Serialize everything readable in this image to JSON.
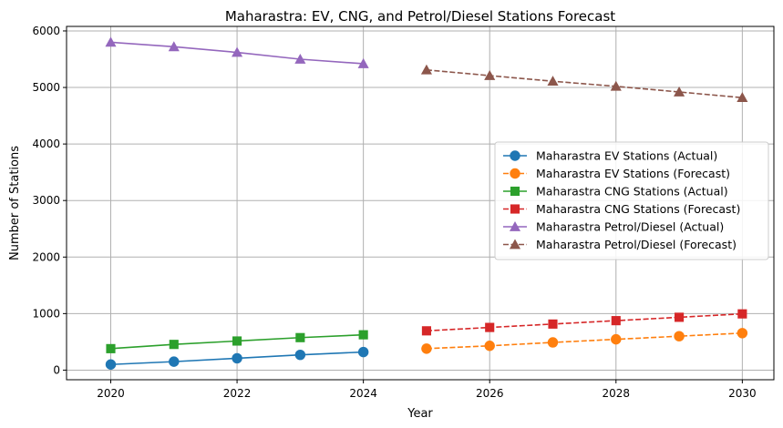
{
  "chart_data": {
    "type": "line",
    "title": "Maharastra: EV, CNG, and Petrol/Diesel Stations Forecast",
    "xlabel": "Year",
    "ylabel": "Number of Stations",
    "xlim": [
      2019.3,
      2030.5
    ],
    "ylim": [
      -170,
      6080
    ],
    "xticks": [
      2020,
      2022,
      2024,
      2026,
      2028,
      2030
    ],
    "yticks": [
      0,
      1000,
      2000,
      3000,
      4000,
      5000,
      6000
    ],
    "grid": true,
    "legend_position": "center-right",
    "series": [
      {
        "name": "Maharastra EV Stations (Actual)",
        "color": "#1f77b4",
        "marker": "circle",
        "linestyle": "solid",
        "x": [
          2020,
          2021,
          2022,
          2023,
          2024
        ],
        "y": [
          100,
          150,
          210,
          270,
          320
        ]
      },
      {
        "name": "Maharastra EV Stations (Forecast)",
        "color": "#ff7f0e",
        "marker": "circle",
        "linestyle": "dashed",
        "x": [
          2025,
          2026,
          2027,
          2028,
          2029,
          2030
        ],
        "y": [
          380,
          430,
          490,
          545,
          600,
          655
        ]
      },
      {
        "name": "Maharastra CNG Stations (Actual)",
        "color": "#2ca02c",
        "marker": "square",
        "linestyle": "solid",
        "x": [
          2020,
          2021,
          2022,
          2023,
          2024
        ],
        "y": [
          380,
          455,
          515,
          575,
          625
        ]
      },
      {
        "name": "Maharastra CNG Stations (Forecast)",
        "color": "#d62728",
        "marker": "square",
        "linestyle": "dashed",
        "x": [
          2025,
          2026,
          2027,
          2028,
          2029,
          2030
        ],
        "y": [
          695,
          755,
          815,
          875,
          935,
          995
        ]
      },
      {
        "name": "Maharastra Petrol/Diesel (Actual)",
        "color": "#9467bd",
        "marker": "triangle",
        "linestyle": "solid",
        "x": [
          2020,
          2021,
          2022,
          2023,
          2024
        ],
        "y": [
          5800,
          5720,
          5620,
          5500,
          5420
        ]
      },
      {
        "name": "Maharastra Petrol/Diesel (Forecast)",
        "color": "#8c564b",
        "marker": "triangle",
        "linestyle": "dashed",
        "x": [
          2025,
          2026,
          2027,
          2028,
          2029,
          2030
        ],
        "y": [
          5310,
          5210,
          5110,
          5020,
          4920,
          4820
        ]
      }
    ]
  }
}
